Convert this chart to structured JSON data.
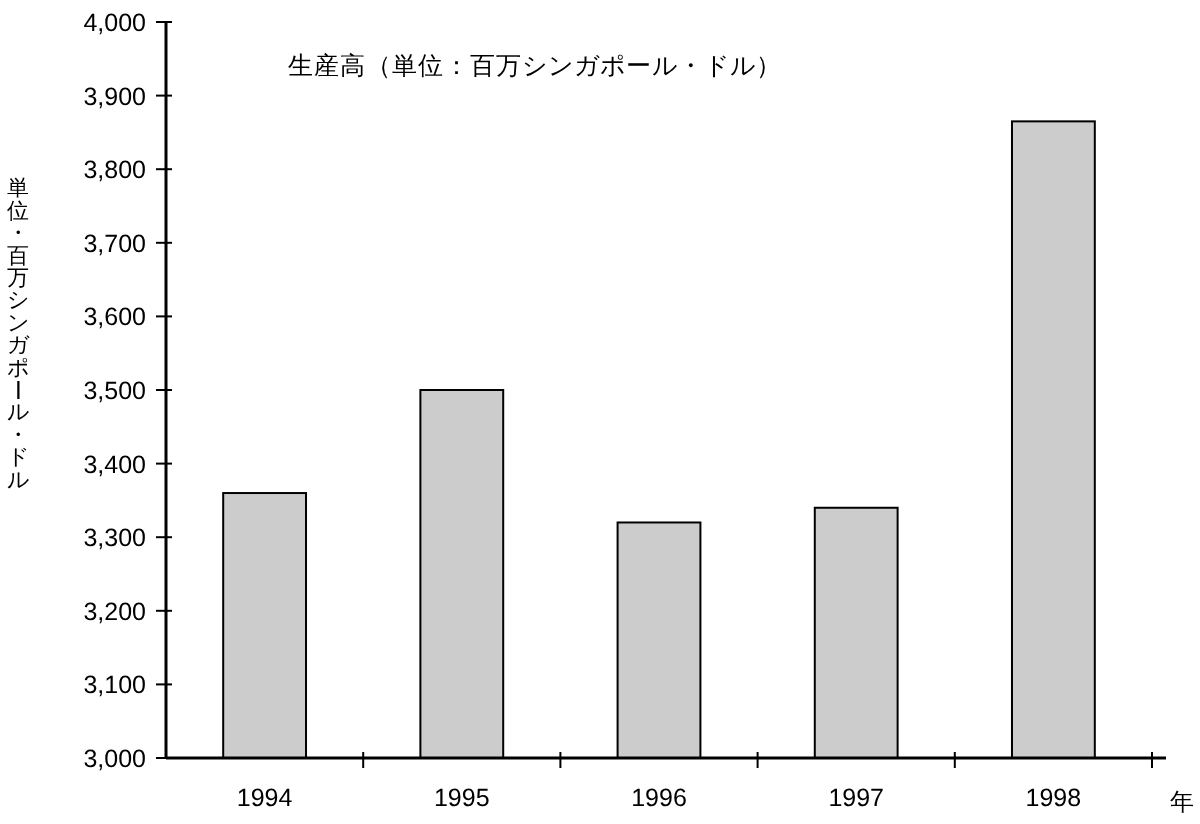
{
  "chart_data": {
    "type": "bar",
    "title": "生産高（単位：百万シンガポール・ドル）",
    "ylabel": "単位・百万シンガポール・ドル",
    "xlabel": "年",
    "categories": [
      "1994",
      "1995",
      "1996",
      "1997",
      "1998"
    ],
    "values": [
      3360,
      3500,
      3320,
      3340,
      3865
    ],
    "color": "#cccccc",
    "ylim": [
      3000,
      4000
    ],
    "yticks": [
      {
        "value": 3000,
        "label": "3,000"
      },
      {
        "value": 3100,
        "label": "3,100"
      },
      {
        "value": 3200,
        "label": "3,200"
      },
      {
        "value": 3300,
        "label": "3,300"
      },
      {
        "value": 3400,
        "label": "3,400"
      },
      {
        "value": 3500,
        "label": "3,500"
      },
      {
        "value": 3600,
        "label": "3,600"
      },
      {
        "value": 3700,
        "label": "3,700"
      },
      {
        "value": 3800,
        "label": "3,800"
      },
      {
        "value": 3900,
        "label": "3,900"
      },
      {
        "value": 4000,
        "label": "4,000"
      }
    ]
  }
}
